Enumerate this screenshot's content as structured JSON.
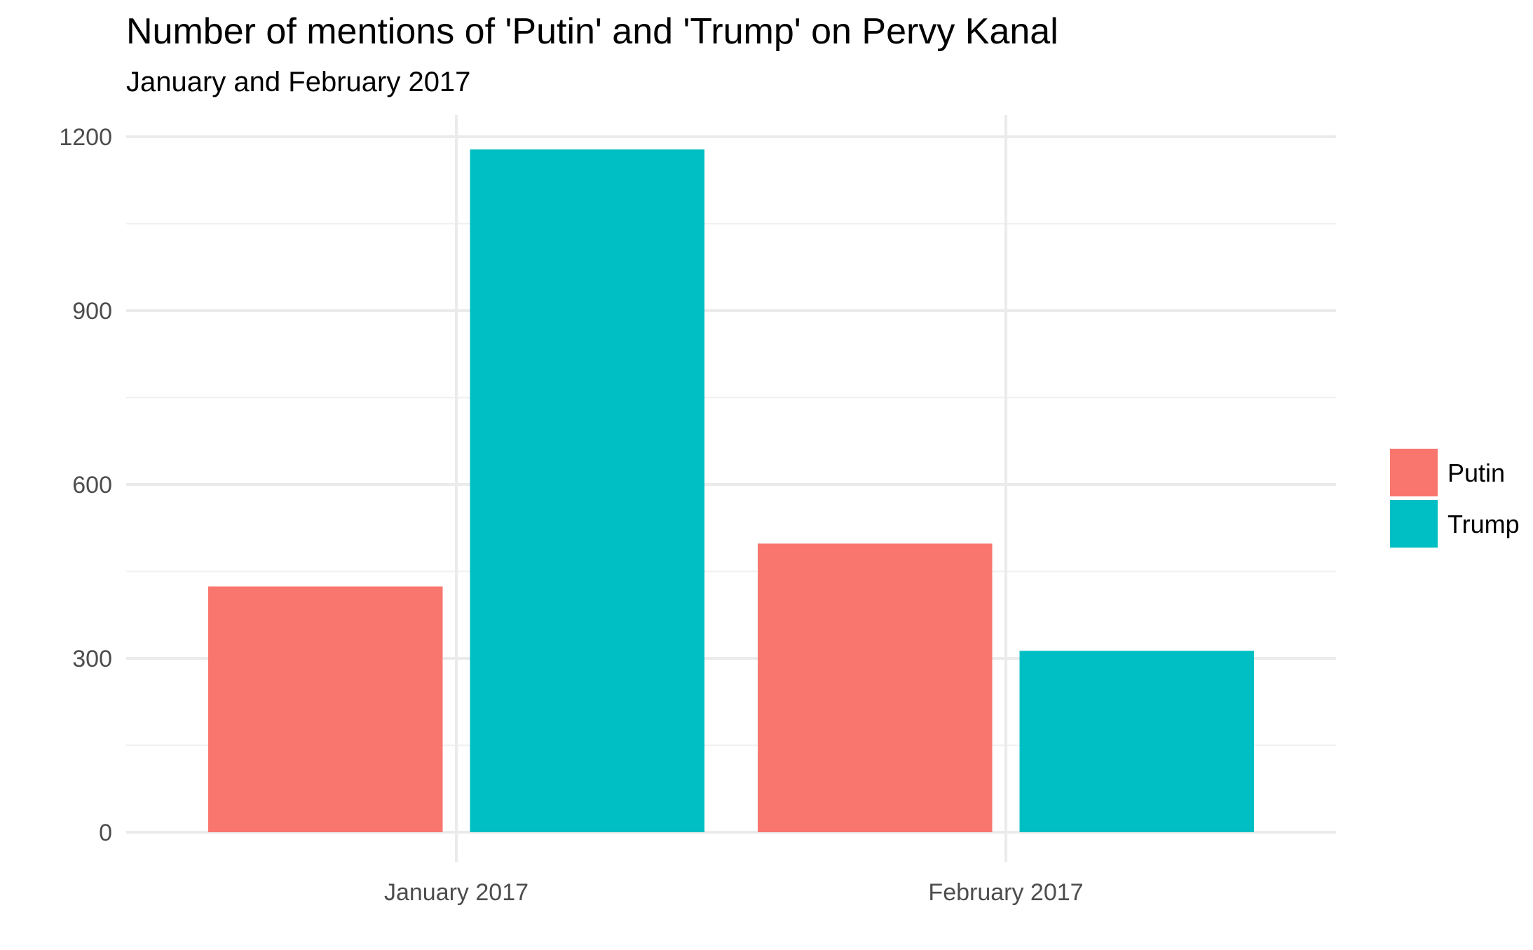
{
  "chart_data": {
    "type": "bar",
    "title": "Number of mentions of 'Putin' and 'Trump' on Pervy Kanal",
    "subtitle": "January and February 2017",
    "xlabel": "",
    "ylabel": "",
    "categories": [
      "January 2017",
      "February 2017"
    ],
    "series": [
      {
        "name": "Putin",
        "color": "#F8766D",
        "values": [
          424,
          498
        ]
      },
      {
        "name": "Trump",
        "color": "#00BFC4",
        "values": [
          1178,
          313
        ]
      }
    ],
    "ylim": [
      0,
      1200
    ],
    "yticks": [
      0,
      300,
      600,
      900,
      1200
    ],
    "ytick_labels": [
      "0",
      "300",
      "600",
      "900",
      "1200"
    ],
    "grid": true,
    "legend_position": "right"
  }
}
